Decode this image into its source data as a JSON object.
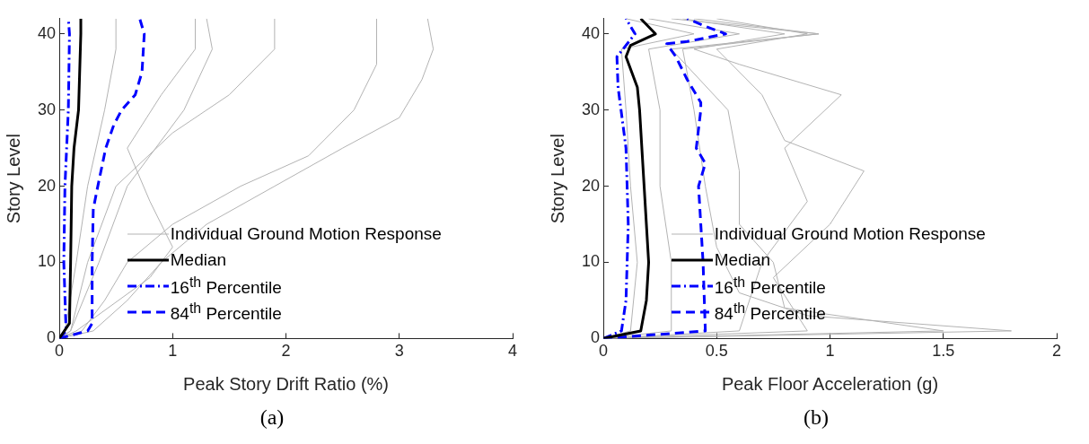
{
  "chart_data": [
    {
      "type": "line",
      "xlabel": "Peak Story Drift Ratio (%)",
      "ylabel": "Story Level",
      "annotations": [
        "(a)"
      ],
      "xlim": [
        0,
        4
      ],
      "xticks": [
        0,
        1,
        2,
        3,
        4
      ],
      "ylim": [
        0,
        42
      ],
      "yticks": [
        0,
        10,
        20,
        30,
        40
      ],
      "grid": false,
      "legend": "bottom",
      "marker": "none",
      "series": [
        {
          "name": "Individual Ground Motion Response",
          "color": "#b3b3b3",
          "line_style": "solid",
          "x": [
            0,
            0.3,
            0.6,
            0.9,
            1.3,
            1.9,
            2.5,
            3.0,
            3.2,
            3.3,
            3.25
          ],
          "values": [
            0,
            1,
            5,
            10,
            15,
            20,
            25,
            29,
            34,
            38,
            42
          ]
        },
        {
          "color": "#b3b3b3",
          "line_style": "solid",
          "x": [
            0,
            0.2,
            0.4,
            0.6,
            1.0,
            1.6,
            2.2,
            2.6,
            2.8,
            2.8
          ],
          "values": [
            0,
            1,
            5,
            10,
            15,
            20,
            24,
            30,
            36,
            42
          ]
        },
        {
          "color": "#b3b3b3",
          "line_style": "solid",
          "x": [
            0,
            0.1,
            0.25,
            0.5,
            1.0,
            1.5,
            1.9,
            1.9
          ],
          "values": [
            0,
            1,
            10,
            20,
            27,
            32,
            38,
            42
          ]
        },
        {
          "color": "#b3b3b3",
          "line_style": "solid",
          "x": [
            0,
            0.15,
            0.8,
            1.0,
            0.8,
            0.6,
            0.9,
            1.2,
            1.2
          ],
          "values": [
            0,
            1,
            8,
            12,
            18,
            25,
            32,
            38,
            42
          ]
        },
        {
          "color": "#b3b3b3",
          "line_style": "solid",
          "x": [
            0,
            0.05,
            0.15,
            0.25,
            0.4,
            0.5,
            0.5
          ],
          "values": [
            0,
            1,
            10,
            20,
            30,
            38,
            42
          ]
        },
        {
          "color": "#b3b3b3",
          "line_style": "solid",
          "x": [
            0,
            0.1,
            0.35,
            0.6,
            1.1,
            1.35,
            1.3
          ],
          "values": [
            0,
            1,
            10,
            20,
            30,
            38,
            42
          ]
        },
        {
          "name": "Median",
          "color": "#000000",
          "line_style": "solid",
          "x": [
            0,
            0.09,
            0.1,
            0.11,
            0.13,
            0.17,
            0.19,
            0.19
          ],
          "values": [
            0,
            2,
            10,
            20,
            25,
            30,
            40,
            42
          ]
        },
        {
          "name": "16$^{th}$ Percentile",
          "color": "#0000ff",
          "line_style": "dashdot",
          "x": [
            0,
            0.06,
            0.04,
            0.05,
            0.08,
            0.09,
            0.08
          ],
          "values": [
            0,
            1,
            10,
            20,
            30,
            40,
            42
          ]
        },
        {
          "name": "84$^{th}$ Percentile",
          "color": "#0000ff",
          "line_style": "dashed",
          "x": [
            0,
            0.25,
            0.29,
            0.29,
            0.3,
            0.34,
            0.41,
            0.48,
            0.55,
            0.67,
            0.73,
            0.75,
            0.71
          ],
          "values": [
            0,
            1,
            2,
            10,
            17,
            20,
            25,
            28,
            30,
            32,
            35,
            40,
            42
          ]
        }
      ]
    },
    {
      "type": "line",
      "xlabel": "Peak Floor Acceleration (g)",
      "ylabel": "Story Level",
      "annotations": [
        "(b)"
      ],
      "xlim": [
        0,
        2
      ],
      "xticks": [
        0,
        0.5,
        1,
        1.5,
        2
      ],
      "ylim": [
        0,
        42
      ],
      "yticks": [
        0,
        10,
        20,
        30,
        40
      ],
      "grid": false,
      "legend": "bottom",
      "marker": "none",
      "series": [
        {
          "name": "Individual Ground Motion Response",
          "color": "#b3b3b3",
          "line_style": "solid",
          "x": [
            0,
            1.8,
            0.9,
            0.6,
            0.5,
            0.45,
            0.4,
            0.35,
            0.95,
            0.3
          ],
          "values": [
            0,
            1,
            3,
            6,
            12,
            20,
            30,
            38,
            40,
            42
          ]
        },
        {
          "color": "#b3b3b3",
          "line_style": "solid",
          "x": [
            0,
            1.5,
            0.8,
            0.75,
            0.6,
            0.6,
            0.55,
            0.3,
            0.95,
            0.4
          ],
          "values": [
            0,
            1,
            4,
            10,
            15,
            22,
            30,
            38,
            40,
            42
          ]
        },
        {
          "color": "#b3b3b3",
          "line_style": "solid",
          "x": [
            0,
            0.9,
            0.75,
            1.0,
            1.15,
            0.8,
            0.7,
            0.5,
            0.9,
            0.5
          ],
          "values": [
            0,
            1,
            8,
            15,
            22,
            26,
            32,
            38,
            40,
            42
          ]
        },
        {
          "color": "#b3b3b3",
          "line_style": "solid",
          "x": [
            0,
            0.6,
            0.7,
            0.9,
            0.8,
            1.05,
            0.6,
            0.4,
            0.8,
            0.35
          ],
          "values": [
            0,
            1,
            10,
            18,
            25,
            32,
            36,
            38,
            40,
            42
          ]
        },
        {
          "color": "#b3b3b3",
          "line_style": "solid",
          "x": [
            0,
            0.3,
            0.3,
            0.25,
            0.25,
            0.2,
            0.6,
            0.2
          ],
          "values": [
            0,
            1,
            10,
            20,
            30,
            38,
            40,
            42
          ]
        },
        {
          "color": "#b3b3b3",
          "line_style": "solid",
          "x": [
            0,
            0.12,
            0.15,
            0.12,
            0.1,
            0.08,
            0.4,
            0.1
          ],
          "values": [
            0,
            1,
            10,
            20,
            30,
            38,
            40,
            42
          ]
        },
        {
          "name": "Median",
          "color": "#000000",
          "line_style": "solid",
          "x": [
            0,
            0.165,
            0.19,
            0.2,
            0.18,
            0.16,
            0.15,
            0.1,
            0.12,
            0.23,
            0.165
          ],
          "values": [
            0,
            1,
            5,
            10,
            20,
            30,
            33,
            37,
            38.5,
            40,
            42
          ]
        },
        {
          "name": "16$^{th}$ Percentile",
          "color": "#0000ff",
          "line_style": "dashdot",
          "x": [
            0,
            0.08,
            0.1,
            0.11,
            0.1,
            0.065,
            0.06,
            0.14,
            0.1
          ],
          "values": [
            0,
            1,
            5,
            15,
            25,
            33,
            37,
            40,
            42
          ]
        },
        {
          "name": "84$^{th}$ Percentile",
          "color": "#0000ff",
          "line_style": "dashed",
          "x": [
            0,
            0.45,
            0.44,
            0.42,
            0.45,
            0.41,
            0.43,
            0.43,
            0.37,
            0.32,
            0.28,
            0.37,
            0.54,
            0.45,
            0.37
          ],
          "values": [
            0,
            1,
            10,
            20,
            23,
            25,
            30,
            31,
            34,
            37,
            38.7,
            39,
            40,
            41,
            42
          ]
        }
      ]
    }
  ]
}
